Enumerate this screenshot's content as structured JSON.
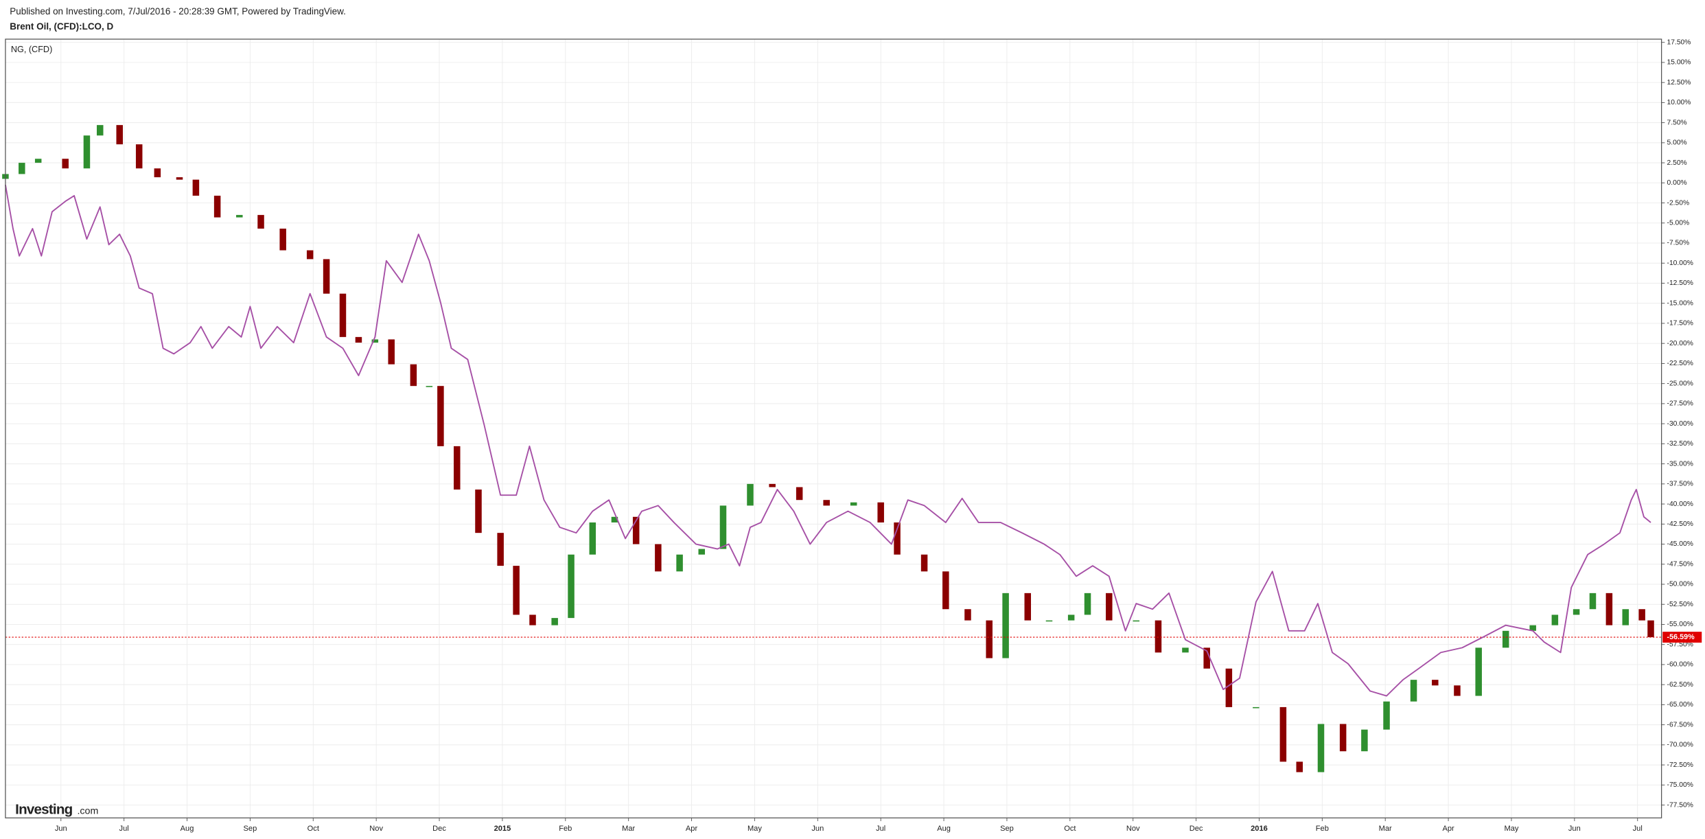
{
  "chart_data": {
    "type": "candlestick",
    "title": "Published on Investing.com, 7/Jul/2016 - 20:28:39 GMT, Powered by TradingView.",
    "logo_main": "Investing",
    "logo_suffix": ".com",
    "xlim": [
      -0.88,
      25.38
    ],
    "xticks": [
      {
        "value": 0,
        "label": "Jun"
      },
      {
        "value": 1,
        "label": "Jul"
      },
      {
        "value": 2,
        "label": "Aug"
      },
      {
        "value": 3,
        "label": "Sep"
      },
      {
        "value": 4,
        "label": "Oct"
      },
      {
        "value": 5,
        "label": "Nov"
      },
      {
        "value": 6,
        "label": "Dec"
      },
      {
        "value": 7,
        "label": "2015"
      },
      {
        "value": 8,
        "label": "Feb"
      },
      {
        "value": 9,
        "label": "Mar"
      },
      {
        "value": 10,
        "label": "Apr"
      },
      {
        "value": 11,
        "label": "May"
      },
      {
        "value": 12,
        "label": "Jun"
      },
      {
        "value": 13,
        "label": "Jul"
      },
      {
        "value": 14,
        "label": "Aug"
      },
      {
        "value": 15,
        "label": "Sep"
      },
      {
        "value": 16,
        "label": "Oct"
      },
      {
        "value": 17,
        "label": "Nov"
      },
      {
        "value": 18,
        "label": "Dec"
      },
      {
        "value": 19,
        "label": "2016"
      },
      {
        "value": 20,
        "label": "Feb"
      },
      {
        "value": 21,
        "label": "Mar"
      },
      {
        "value": 22,
        "label": "Apr"
      },
      {
        "value": 23,
        "label": "May"
      },
      {
        "value": 24,
        "label": "Jun"
      },
      {
        "value": 25,
        "label": "Jul"
      }
    ],
    "ylim": [
      -79.1,
      17.9
    ],
    "yticks": [
      {
        "value": -77.5,
        "label": "-77.50%"
      },
      {
        "value": -75,
        "label": "-75.00%"
      },
      {
        "value": -72.5,
        "label": "-72.50%"
      },
      {
        "value": -70,
        "label": "-70.00%"
      },
      {
        "value": -67.5,
        "label": "-67.50%"
      },
      {
        "value": -65,
        "label": "-65.00%"
      },
      {
        "value": -62.5,
        "label": "-62.50%"
      },
      {
        "value": -60,
        "label": "-60.00%"
      },
      {
        "value": -57.5,
        "label": "-57.50%"
      },
      {
        "value": -55,
        "label": "-55.00%"
      },
      {
        "value": -52.5,
        "label": "-52.50%"
      },
      {
        "value": -50,
        "label": "-50.00%"
      },
      {
        "value": -47.5,
        "label": "-47.50%"
      },
      {
        "value": -45,
        "label": "-45.00%"
      },
      {
        "value": -42.5,
        "label": "-42.50%"
      },
      {
        "value": -40,
        "label": "-40.00%"
      },
      {
        "value": -37.5,
        "label": "-37.50%"
      },
      {
        "value": -35,
        "label": "-35.00%"
      },
      {
        "value": -32.5,
        "label": "-32.50%"
      },
      {
        "value": -30,
        "label": "-30.00%"
      },
      {
        "value": -27.5,
        "label": "-27.50%"
      },
      {
        "value": -25,
        "label": "-25.00%"
      },
      {
        "value": -22.5,
        "label": "-22.50%"
      },
      {
        "value": -20,
        "label": "-20.00%"
      },
      {
        "value": -17.5,
        "label": "-17.50%"
      },
      {
        "value": -15,
        "label": "-15.00%"
      },
      {
        "value": -12.5,
        "label": "-12.50%"
      },
      {
        "value": -10,
        "label": "-10.00%"
      },
      {
        "value": -7.5,
        "label": "-7.50%"
      },
      {
        "value": -5,
        "label": "-5.00%"
      },
      {
        "value": -2.5,
        "label": "-2.50%"
      },
      {
        "value": 0,
        "label": "0.00%"
      },
      {
        "value": 2.5,
        "label": "2.50%"
      },
      {
        "value": 5,
        "label": "5.00%"
      },
      {
        "value": 7.5,
        "label": "7.50%"
      },
      {
        "value": 10,
        "label": "10.00%"
      },
      {
        "value": 12.5,
        "label": "12.50%"
      },
      {
        "value": 15,
        "label": "15.00%"
      },
      {
        "value": 17.5,
        "label": "17.50%"
      }
    ],
    "grid": true,
    "series": [
      {
        "name": "Brent Oil, (CFD):LCO, D",
        "type": "candlestick",
        "up_color": "#2f8f2f",
        "down_color": "#8b0000",
        "last_label": "-56.59%",
        "last_color": "#e00000",
        "x": [
          -0.88,
          -0.62,
          -0.36,
          0.07,
          0.41,
          0.62,
          0.93,
          1.24,
          1.53,
          1.88,
          2.14,
          2.48,
          2.83,
          3.17,
          3.52,
          3.95,
          4.21,
          4.47,
          4.72,
          4.98,
          5.24,
          5.59,
          5.84,
          6.02,
          6.28,
          6.62,
          6.97,
          7.22,
          7.48,
          7.83,
          8.09,
          8.43,
          8.78,
          9.12,
          9.47,
          9.81,
          10.16,
          10.5,
          10.93,
          11.28,
          11.71,
          12.14,
          12.57,
          13,
          13.26,
          13.69,
          14.03,
          14.38,
          14.72,
          14.98,
          15.33,
          15.67,
          16.02,
          16.28,
          16.62,
          17.05,
          17.4,
          17.83,
          18.17,
          18.52,
          18.95,
          19.38,
          19.64,
          19.98,
          20.33,
          20.67,
          21.02,
          21.45,
          21.79,
          22.14,
          22.48,
          22.91,
          23.34,
          23.69,
          24.03,
          24.29,
          24.55,
          24.81,
          25.07,
          25.21
        ],
        "open": [
          0.5,
          1.1,
          2.5,
          3,
          1.8,
          5.9,
          7.2,
          4.8,
          1.8,
          0.7,
          0.4,
          -1.6,
          -4.3,
          -4,
          -5.7,
          -8.4,
          -9.5,
          -13.8,
          -19.2,
          -19.9,
          -19.5,
          -22.6,
          -25.3,
          -25.3,
          -32.8,
          -38.2,
          -43.6,
          -47.7,
          -53.8,
          -55.1,
          -54.2,
          -46.3,
          -42.3,
          -41.6,
          -45,
          -48.4,
          -46.3,
          -45.6,
          -40.2,
          -37.5,
          -37.9,
          -39.5,
          -40.2,
          -39.8,
          -42.3,
          -46.3,
          -48.4,
          -53.1,
          -54.5,
          -59.2,
          -51.1,
          -54.5,
          -54.5,
          -53.8,
          -51.1,
          -54.5,
          -54.5,
          -58.5,
          -57.9,
          -60.5,
          -65.3,
          -65.3,
          -72.1,
          -73.4,
          -67.4,
          -70.8,
          -68.1,
          -64.6,
          -61.9,
          -62.6,
          -63.9,
          -57.9,
          -55.8,
          -55.1,
          -53.8,
          -53.1,
          -51.1,
          -55.1,
          -53.1,
          -54.5
        ],
        "close": [
          1.1,
          2.5,
          3,
          1.8,
          5.9,
          7.2,
          4.8,
          1.8,
          0.7,
          0.4,
          -1.6,
          -4.3,
          -4,
          -5.7,
          -8.4,
          -9.5,
          -13.8,
          -19.2,
          -19.9,
          -19.5,
          -22.6,
          -25.3,
          -25.3,
          -32.8,
          -38.2,
          -43.6,
          -47.7,
          -53.8,
          -55.1,
          -54.2,
          -46.3,
          -42.3,
          -41.6,
          -45,
          -48.4,
          -46.3,
          -45.6,
          -40.2,
          -37.5,
          -37.9,
          -39.5,
          -40.2,
          -39.8,
          -42.3,
          -46.3,
          -48.4,
          -53.1,
          -54.5,
          -59.2,
          -51.1,
          -54.5,
          -54.5,
          -53.8,
          -51.1,
          -54.5,
          -54.5,
          -58.5,
          -57.9,
          -60.5,
          -65.3,
          -65.3,
          -72.1,
          -73.4,
          -67.4,
          -70.8,
          -68.1,
          -64.6,
          -61.9,
          -62.6,
          -63.9,
          -57.9,
          -55.8,
          -55.1,
          -53.8,
          -53.1,
          -51.1,
          -55.1,
          -53.1,
          -54.5,
          -56.59
        ]
      },
      {
        "name": "NG,  (CFD)",
        "type": "line",
        "color": "#a650a6",
        "x": [
          -0.88,
          -0.76,
          -0.66,
          -0.45,
          -0.31,
          -0.14,
          0.07,
          0.21,
          0.41,
          0.62,
          0.76,
          0.93,
          1.1,
          1.24,
          1.45,
          1.62,
          1.79,
          2.05,
          2.22,
          2.4,
          2.66,
          2.86,
          3,
          3.17,
          3.43,
          3.69,
          3.95,
          4.21,
          4.47,
          4.72,
          4.98,
          5.16,
          5.41,
          5.67,
          5.84,
          6.02,
          6.19,
          6.45,
          6.71,
          6.97,
          7.22,
          7.43,
          7.66,
          7.91,
          8.17,
          8.43,
          8.69,
          8.95,
          9.21,
          9.47,
          9.72,
          10.07,
          10.41,
          10.59,
          10.76,
          10.93,
          11.1,
          11.36,
          11.62,
          11.88,
          12.14,
          12.48,
          12.83,
          13.17,
          13.43,
          13.69,
          14.03,
          14.29,
          14.55,
          14.9,
          15.24,
          15.59,
          15.84,
          16.1,
          16.36,
          16.62,
          16.88,
          17.05,
          17.31,
          17.57,
          17.83,
          18.17,
          18.43,
          18.69,
          18.95,
          19.21,
          19.47,
          19.72,
          19.93,
          20.16,
          20.41,
          20.76,
          21.02,
          21.28,
          21.53,
          21.88,
          22.22,
          22.57,
          22.91,
          23.34,
          23.52,
          23.78,
          23.95,
          24.21,
          24.47,
          24.72,
          24.9,
          24.98,
          25.1,
          25.21
        ],
        "values": [
          -0.25,
          -5.7,
          -9.1,
          -5.7,
          -9.1,
          -3.6,
          -2.3,
          -1.6,
          -7,
          -3,
          -7.7,
          -6.4,
          -9.1,
          -13.1,
          -13.8,
          -20.6,
          -21.3,
          -19.9,
          -17.9,
          -20.6,
          -17.9,
          -19.2,
          -15.4,
          -20.6,
          -17.9,
          -19.9,
          -13.8,
          -19.2,
          -20.6,
          -24,
          -19.2,
          -9.7,
          -12.4,
          -6.4,
          -9.7,
          -14.9,
          -20.6,
          -22,
          -30.1,
          -38.9,
          -38.9,
          -32.8,
          -39.5,
          -42.9,
          -43.6,
          -40.9,
          -39.5,
          -44.3,
          -40.9,
          -40.2,
          -42.3,
          -45,
          -45.6,
          -45,
          -47.7,
          -42.9,
          -42.3,
          -38.2,
          -40.9,
          -45,
          -42.3,
          -40.9,
          -42.3,
          -45,
          -39.5,
          -40.2,
          -42.3,
          -39.3,
          -42.3,
          -42.3,
          -43.6,
          -45,
          -46.3,
          -49,
          -47.7,
          -49,
          -55.8,
          -52.4,
          -53.1,
          -51.1,
          -56.9,
          -58.3,
          -63.1,
          -61.7,
          -52.2,
          -48.4,
          -55.8,
          -55.8,
          -52.4,
          -58.5,
          -59.9,
          -63.3,
          -63.9,
          -61.9,
          -60.5,
          -58.5,
          -57.9,
          -56.5,
          -55.1,
          -55.8,
          -57.2,
          -58.5,
          -50.4,
          -46.3,
          -45,
          -43.6,
          -39.5,
          -38.2,
          -41.6,
          -42.3
        ]
      }
    ]
  }
}
